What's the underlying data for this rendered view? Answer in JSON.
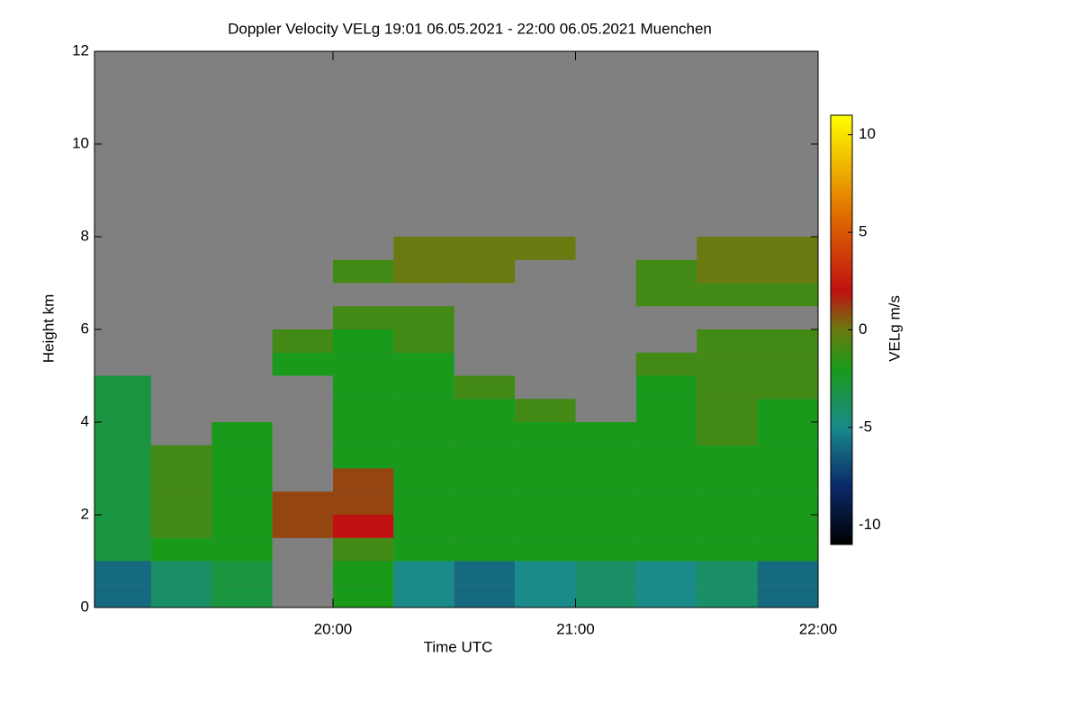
{
  "chart_data": {
    "type": "heatmap",
    "title": "Doppler Velocity VELg   19:01 06.05.2021 - 22:00 06.05.2021 Muenchen",
    "x_label": "Time UTC",
    "y_label": "Height km",
    "colorbar_label": "VELg m/s",
    "xlim": [
      19.0167,
      22.0
    ],
    "xticks": [
      {
        "value": 20,
        "label": "20:00"
      },
      {
        "value": 21,
        "label": "21:00"
      },
      {
        "value": 22,
        "label": "22:00"
      }
    ],
    "ylim": [
      0,
      12
    ],
    "yticks": [
      0,
      2,
      4,
      6,
      8,
      10,
      12
    ],
    "zlim": [
      -11,
      11
    ],
    "zticks": [
      -10,
      -5,
      0,
      5,
      10
    ],
    "background": "#808080",
    "colorscale": [
      [
        -11,
        "#000000"
      ],
      [
        -8,
        "#0a2a6a"
      ],
      [
        -5,
        "#1a8a8a"
      ],
      [
        -2,
        "#1a9a1a"
      ],
      [
        0,
        "#6a7a10"
      ],
      [
        2,
        "#c01010"
      ],
      [
        6,
        "#e07000"
      ],
      [
        11,
        "#ffff00"
      ]
    ],
    "x": [
      19.125,
      19.375,
      19.625,
      19.875,
      20.125,
      20.375,
      20.625,
      20.875,
      21.125,
      21.375,
      21.625,
      21.875
    ],
    "y": [
      0.25,
      0.75,
      1.25,
      1.75,
      2.25,
      2.75,
      3.25,
      3.75,
      4.25,
      4.75,
      5.25,
      5.75,
      6.25,
      6.75,
      7.25,
      7.75
    ],
    "z": [
      [
        -6,
        -4,
        -3,
        null,
        -2,
        -5,
        -6,
        -5,
        -4,
        -5,
        -4,
        -6
      ],
      [
        -6,
        -4,
        -3,
        null,
        -2,
        -5,
        -6,
        -5,
        -4,
        -5,
        -4,
        -6
      ],
      [
        -3,
        -2,
        -2,
        null,
        -1,
        -2,
        -2,
        -2,
        -2,
        -2,
        -2,
        -2
      ],
      [
        -3,
        -1,
        -2,
        1,
        2,
        -2,
        -2,
        -2,
        -2,
        -2,
        -2,
        -2
      ],
      [
        -3,
        -1,
        -2,
        1,
        1,
        -2,
        -2,
        -2,
        -2,
        -2,
        -2,
        -2
      ],
      [
        -3,
        -1,
        -2,
        null,
        1,
        -2,
        -2,
        -2,
        -2,
        -2,
        -2,
        -2
      ],
      [
        -3,
        -1,
        -2,
        null,
        -2,
        -2,
        -2,
        -2,
        -2,
        -2,
        -2,
        -2
      ],
      [
        -3,
        null,
        -2,
        null,
        -2,
        -2,
        -2,
        -2,
        -2,
        -2,
        -1,
        -2
      ],
      [
        -3,
        null,
        null,
        null,
        -2,
        -2,
        -2,
        -1,
        null,
        -2,
        -1,
        -2
      ],
      [
        -3,
        null,
        null,
        null,
        -2,
        -2,
        -1,
        null,
        null,
        -2,
        -1,
        -1
      ],
      [
        null,
        null,
        null,
        -2,
        -2,
        -2,
        null,
        null,
        null,
        -1,
        -1,
        -1
      ],
      [
        null,
        null,
        null,
        -1,
        -2,
        -1,
        null,
        null,
        null,
        null,
        -1,
        -1
      ],
      [
        null,
        null,
        null,
        null,
        -1,
        -1,
        null,
        null,
        null,
        null,
        null,
        null
      ],
      [
        null,
        null,
        null,
        null,
        null,
        null,
        null,
        null,
        null,
        -1,
        -1,
        -1
      ],
      [
        null,
        null,
        null,
        null,
        -1,
        0,
        0,
        null,
        null,
        -1,
        0,
        0
      ],
      [
        null,
        null,
        null,
        null,
        null,
        0,
        0,
        0,
        null,
        null,
        0,
        0
      ]
    ]
  }
}
